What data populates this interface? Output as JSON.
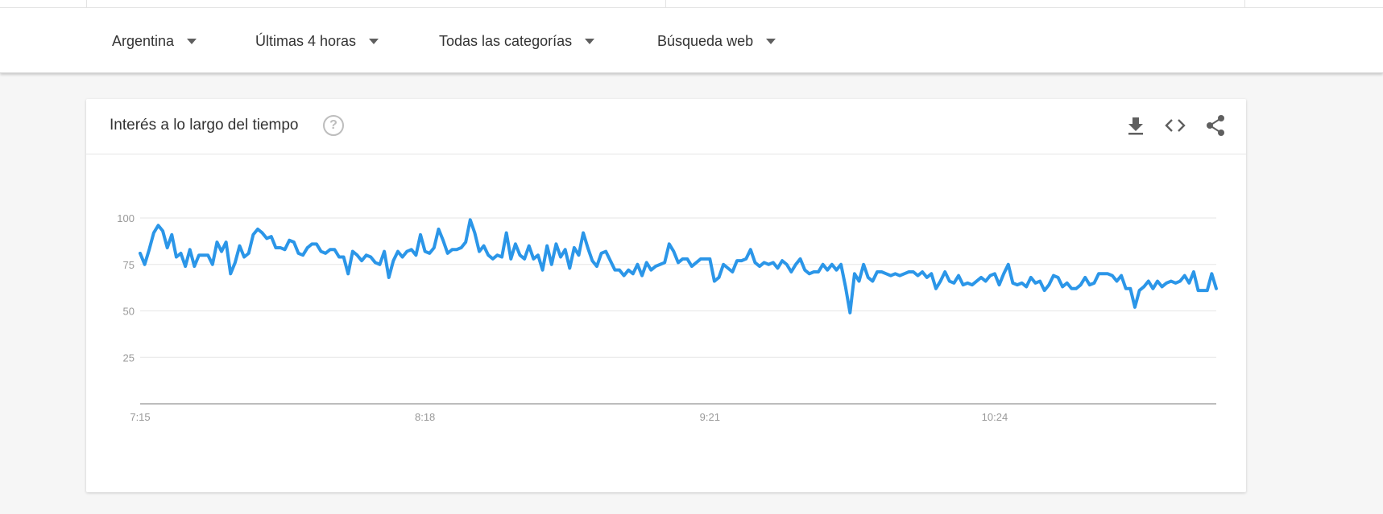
{
  "filters": [
    {
      "label": "Argentina"
    },
    {
      "label": "Últimas 4 horas"
    },
    {
      "label": "Todas las categorías"
    },
    {
      "label": "Búsqueda web"
    }
  ],
  "card": {
    "title": "Interés a lo largo del tiempo",
    "help_glyph": "?"
  },
  "colors": {
    "line": "#2b96e8",
    "grid": "#e6e6e6",
    "axis": "#bdbdbd",
    "tick_text": "#999999"
  },
  "icons": {
    "help": "help-circle-icon",
    "download": "download-icon",
    "embed": "embed-code-icon",
    "share": "share-icon"
  },
  "chart_data": {
    "type": "line",
    "title": "",
    "xlabel": "",
    "ylabel": "",
    "ylim": [
      0,
      100
    ],
    "yticks": [
      25,
      50,
      75,
      100
    ],
    "xtick_labels": [
      {
        "label": "7:15",
        "index": 0
      },
      {
        "label": "8:18",
        "index": 63
      },
      {
        "label": "9:21",
        "index": 126
      },
      {
        "label": "10:24",
        "index": 189
      }
    ],
    "grid": true,
    "legend": "none",
    "series": [
      {
        "values": [
          81,
          75,
          83,
          92,
          96,
          93,
          84,
          91,
          79,
          81,
          74,
          83,
          74,
          80,
          80,
          80,
          75,
          87,
          82,
          87,
          70,
          76,
          85,
          79,
          81,
          91,
          94,
          92,
          89,
          90,
          84,
          84,
          83,
          88,
          87,
          81,
          80,
          84,
          86,
          86,
          82,
          81,
          83,
          83,
          79,
          79,
          70,
          82,
          80,
          77,
          80,
          79,
          76,
          75,
          82,
          68,
          77,
          82,
          79,
          82,
          83,
          80,
          91,
          82,
          81,
          84,
          94,
          88,
          81,
          83,
          83,
          84,
          87,
          99,
          92,
          82,
          85,
          80,
          78,
          80,
          79,
          92,
          78,
          86,
          80,
          78,
          85,
          78,
          80,
          72,
          85,
          75,
          86,
          79,
          83,
          73,
          84,
          80,
          92,
          84,
          77,
          74,
          81,
          82,
          77,
          72,
          72,
          69,
          72,
          70,
          75,
          69,
          76,
          72,
          74,
          75,
          76,
          86,
          82,
          76,
          78,
          78,
          74,
          76,
          78,
          78,
          78,
          66,
          68,
          75,
          73,
          71,
          77,
          77,
          78,
          83,
          76,
          74,
          76,
          75,
          76,
          73,
          77,
          75,
          71,
          75,
          78,
          72,
          70,
          71,
          71,
          75,
          72,
          75,
          72,
          75,
          63,
          49,
          70,
          66,
          75,
          68,
          66,
          71,
          71,
          70,
          69,
          70,
          69,
          70,
          71,
          71,
          69,
          71,
          68,
          70,
          62,
          66,
          71,
          66,
          65,
          69,
          64,
          65,
          64,
          66,
          68,
          66,
          69,
          70,
          64,
          70,
          75,
          65,
          64,
          65,
          63,
          68,
          65,
          66,
          61,
          64,
          69,
          68,
          63,
          65,
          62,
          62,
          64,
          68,
          64,
          65,
          70,
          70,
          70,
          69,
          66,
          69,
          62,
          62,
          52,
          61,
          63,
          66,
          62,
          66,
          63,
          65,
          66,
          65,
          66,
          69,
          65,
          71,
          61,
          61,
          61,
          70,
          62
        ]
      }
    ]
  }
}
